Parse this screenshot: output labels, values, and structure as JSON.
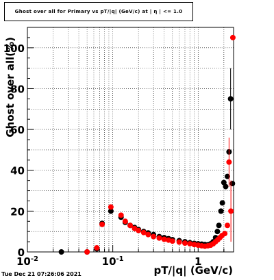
{
  "chart_data": {
    "type": "scatter",
    "title": "Ghost over all for Primary vs pT/|q| (GeV/c) at | η | <= 1.0",
    "xlabel": "pT/|q| (GeV/c)",
    "ylabel": "Ghost over all(%)",
    "xscale": "log",
    "xlim": [
      0.01,
      2.6
    ],
    "ylim": [
      0,
      110
    ],
    "x_ticklabels": [
      "10^-2",
      "10^-1",
      "1"
    ],
    "y_ticklabels": [
      "0",
      "20",
      "40",
      "60",
      "80",
      "100"
    ],
    "grid": true,
    "series": [
      {
        "color": "#000000",
        "points": [
          {
            "x": 0.025,
            "y": 0
          },
          {
            "x": 0.05,
            "y": 0
          },
          {
            "x": 0.065,
            "y": 1.5
          },
          {
            "x": 0.075,
            "y": 14
          },
          {
            "x": 0.095,
            "y": 20
          },
          {
            "x": 0.125,
            "y": 17
          },
          {
            "x": 0.14,
            "y": 14.5
          },
          {
            "x": 0.16,
            "y": 13
          },
          {
            "x": 0.18,
            "y": 12
          },
          {
            "x": 0.2,
            "y": 11
          },
          {
            "x": 0.23,
            "y": 10
          },
          {
            "x": 0.26,
            "y": 9.3
          },
          {
            "x": 0.3,
            "y": 8.5
          },
          {
            "x": 0.35,
            "y": 7.5
          },
          {
            "x": 0.4,
            "y": 7
          },
          {
            "x": 0.45,
            "y": 6.5
          },
          {
            "x": 0.5,
            "y": 6
          },
          {
            "x": 0.6,
            "y": 5.5
          },
          {
            "x": 0.7,
            "y": 5
          },
          {
            "x": 0.8,
            "y": 4.5
          },
          {
            "x": 0.9,
            "y": 4.2
          },
          {
            "x": 1.0,
            "y": 4
          },
          {
            "x": 1.1,
            "y": 3.8
          },
          {
            "x": 1.2,
            "y": 3.6
          },
          {
            "x": 1.3,
            "y": 3.5
          },
          {
            "x": 1.4,
            "y": 4
          },
          {
            "x": 1.5,
            "y": 5
          },
          {
            "x": 1.6,
            "y": 7
          },
          {
            "x": 1.68,
            "y": 10
          },
          {
            "x": 1.75,
            "y": 13
          },
          {
            "x": 1.85,
            "y": 20
          },
          {
            "x": 1.92,
            "y": 24
          },
          {
            "x": 2.0,
            "y": 34
          },
          {
            "x": 2.1,
            "y": 32
          },
          {
            "x": 2.2,
            "y": 37
          },
          {
            "x": 2.3,
            "y": 49
          },
          {
            "x": 2.4,
            "y": 75,
            "err": 15
          },
          {
            "x": 2.52,
            "y": 33.5
          }
        ]
      },
      {
        "color": "#ff0000",
        "points": [
          {
            "x": 0.05,
            "y": 0
          },
          {
            "x": 0.065,
            "y": 2
          },
          {
            "x": 0.075,
            "y": 13.5
          },
          {
            "x": 0.095,
            "y": 22
          },
          {
            "x": 0.125,
            "y": 18
          },
          {
            "x": 0.14,
            "y": 15
          },
          {
            "x": 0.16,
            "y": 13
          },
          {
            "x": 0.18,
            "y": 11.5
          },
          {
            "x": 0.2,
            "y": 10.5
          },
          {
            "x": 0.23,
            "y": 9.5
          },
          {
            "x": 0.26,
            "y": 8.5
          },
          {
            "x": 0.3,
            "y": 7.5
          },
          {
            "x": 0.35,
            "y": 6.8
          },
          {
            "x": 0.4,
            "y": 6.2
          },
          {
            "x": 0.45,
            "y": 5.8
          },
          {
            "x": 0.5,
            "y": 5.3
          },
          {
            "x": 0.6,
            "y": 4.8
          },
          {
            "x": 0.7,
            "y": 4.3
          },
          {
            "x": 0.8,
            "y": 4
          },
          {
            "x": 0.9,
            "y": 3.6
          },
          {
            "x": 1.0,
            "y": 3.3
          },
          {
            "x": 1.1,
            "y": 3
          },
          {
            "x": 1.2,
            "y": 2.8
          },
          {
            "x": 1.3,
            "y": 3
          },
          {
            "x": 1.4,
            "y": 3.3
          },
          {
            "x": 1.5,
            "y": 4
          },
          {
            "x": 1.6,
            "y": 5
          },
          {
            "x": 1.7,
            "y": 6
          },
          {
            "x": 1.8,
            "y": 7
          },
          {
            "x": 1.9,
            "y": 8
          },
          {
            "x": 2.05,
            "y": 9
          },
          {
            "x": 2.2,
            "y": 13
          },
          {
            "x": 2.3,
            "y": 44,
            "err": 12
          },
          {
            "x": 2.42,
            "y": 20,
            "err": 15
          },
          {
            "x": 2.55,
            "y": 105
          }
        ]
      }
    ]
  },
  "timestamp": "Tue Dec 21 07:26:06 2021"
}
